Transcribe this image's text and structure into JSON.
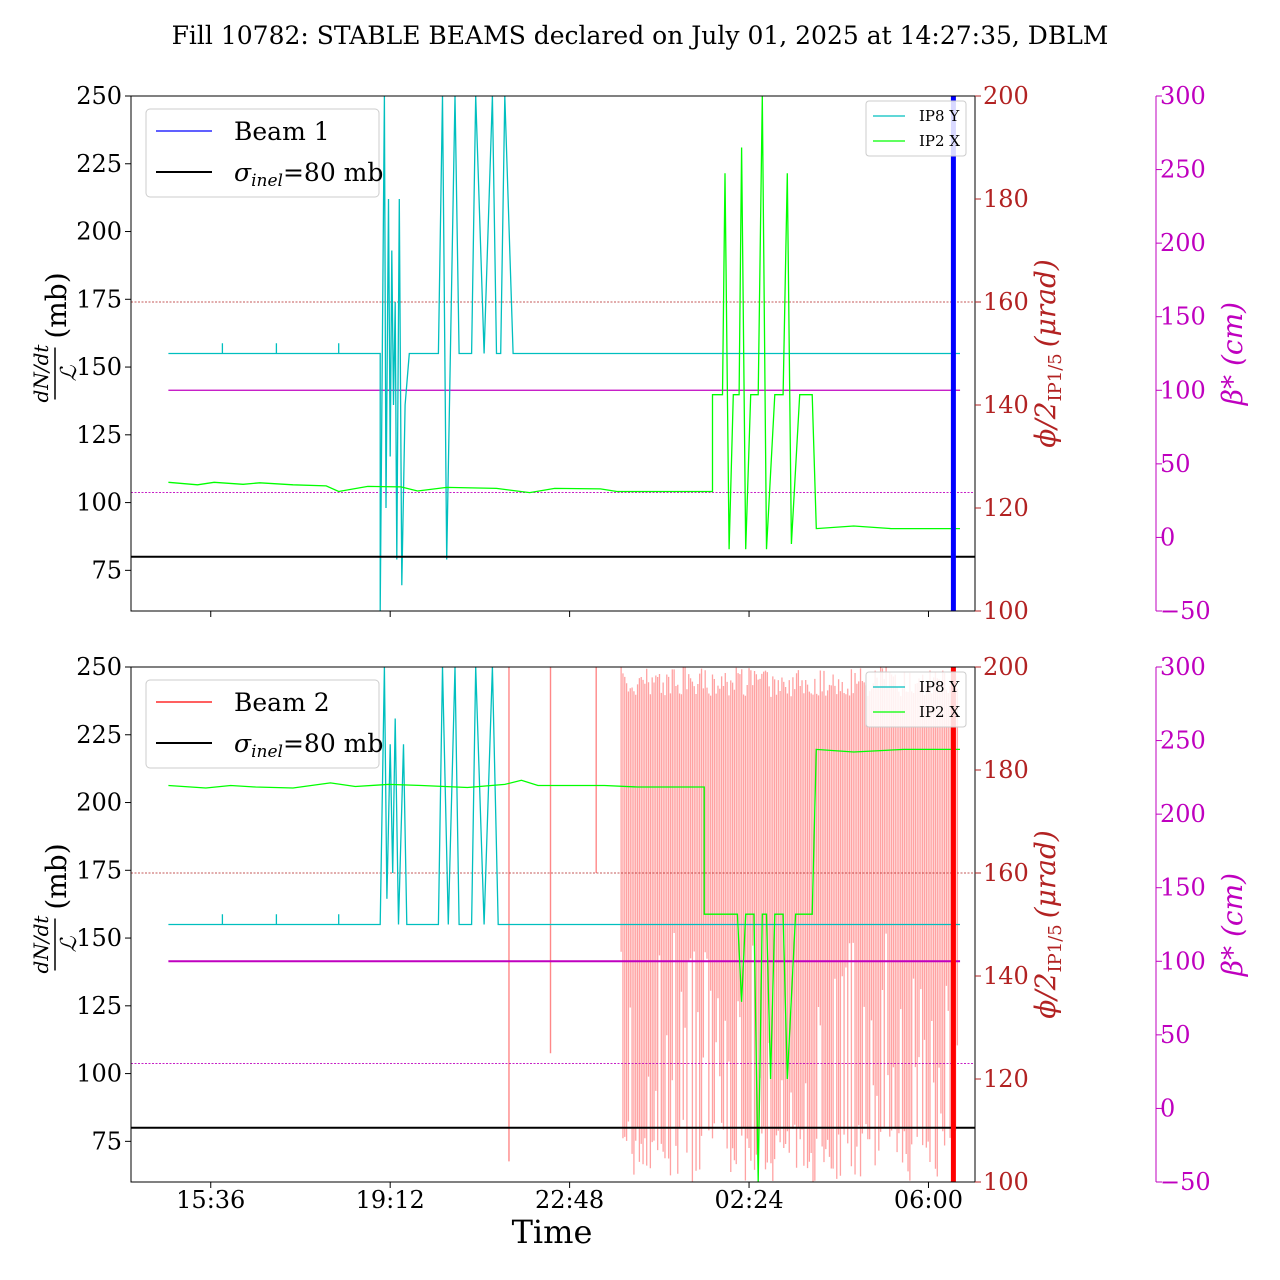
{
  "figure": {
    "title": "Fill 10782: STABLE BEAMS declared on July 01, 2025 at 14:27:35, DBLM",
    "xlabel": "Time",
    "x_tick_labels": [
      "15:36",
      "19:12",
      "22:48",
      "02:24",
      "06:00"
    ],
    "left_ylabel_num": "dN/dt",
    "left_ylabel_den": "ℒ",
    "left_ylabel_unit": "(mb)",
    "right_ylabel_1": "ϕ/2",
    "right_ylabel_1_sub": "IP1/5",
    "right_ylabel_1_unit": "(μrad)",
    "right_ylabel_2": "β* (cm)",
    "colors": {
      "beam1": "#0000ff",
      "beam2": "#ff0000",
      "ip8y": "#00bfbf",
      "ip2x": "#00ff00",
      "crossing_axis": "#b22222",
      "beta_axis": "#bf00bf",
      "sigma": "#000000"
    }
  },
  "chart_data": [
    {
      "type": "line",
      "panel": "top",
      "legend_left": [
        {
          "label": "Beam 1",
          "color": "#0000ff"
        },
        {
          "label_main": "σ",
          "label_sub": "inel",
          "label_rest": "=80 mb",
          "color": "#000000"
        }
      ],
      "legend_right": [
        "IP8 Y",
        "IP2 X"
      ],
      "left_axis": {
        "ticks": [
          75,
          100,
          125,
          150,
          175,
          200,
          225,
          250
        ],
        "ylim": [
          60,
          250
        ]
      },
      "right_axis_crossing": {
        "ticks": [
          100,
          120,
          140,
          160,
          180,
          200
        ],
        "ylim": [
          100,
          200
        ]
      },
      "right_axis_beta": {
        "ticks": [
          -50,
          0,
          50,
          100,
          150,
          200,
          250,
          300
        ],
        "ylim": [
          -50,
          300
        ]
      },
      "sigma_inel_mb": 80,
      "hlines_crossing": [
        160,
        123
      ],
      "beta_cm": 100,
      "beam_loss_time": "06:30",
      "series": [
        {
          "name": "IP8 Y",
          "points": [
            [
              "14:45",
              150
            ],
            [
              "15:50",
              150
            ],
            [
              "15:50",
              152
            ],
            [
              "15:50",
              150
            ],
            [
              "16:55",
              150
            ],
            [
              "16:55",
              152
            ],
            [
              "16:55",
              150
            ],
            [
              "18:10",
              150
            ],
            [
              "18:10",
              152
            ],
            [
              "18:10",
              150
            ],
            [
              "19:00",
              150
            ],
            [
              "19:00",
              100
            ],
            [
              "19:05",
              200
            ],
            [
              "19:07",
              120
            ],
            [
              "19:10",
              180
            ],
            [
              "19:12",
              130
            ],
            [
              "19:14",
              170
            ],
            [
              "19:16",
              140
            ],
            [
              "19:18",
              160
            ],
            [
              "19:20",
              110
            ],
            [
              "19:23",
              180
            ],
            [
              "19:26",
              105
            ],
            [
              "19:30",
              140
            ],
            [
              "19:35",
              150
            ],
            [
              "20:10",
              150
            ],
            [
              "20:15",
              200
            ],
            [
              "20:20",
              110
            ],
            [
              "20:30",
              200
            ],
            [
              "20:35",
              150
            ],
            [
              "20:50",
              150
            ],
            [
              "20:55",
              200
            ],
            [
              "21:05",
              150
            ],
            [
              "21:15",
              200
            ],
            [
              "21:20",
              150
            ],
            [
              "21:25",
              150
            ],
            [
              "21:30",
              200
            ],
            [
              "21:40",
              150
            ],
            [
              "06:38",
              150
            ]
          ]
        },
        {
          "name": "IP2 X",
          "points": [
            [
              "14:45",
              125
            ],
            [
              "15:20",
              124.5
            ],
            [
              "15:40",
              125
            ],
            [
              "16:15",
              124.6
            ],
            [
              "16:35",
              124.9
            ],
            [
              "17:15",
              124.5
            ],
            [
              "17:55",
              124.3
            ],
            [
              "18:10",
              123.2
            ],
            [
              "18:45",
              124.2
            ],
            [
              "19:25",
              124.1
            ],
            [
              "19:45",
              123.3
            ],
            [
              "20:20",
              124.0
            ],
            [
              "21:20",
              123.8
            ],
            [
              "22:00",
              123.0
            ],
            [
              "22:30",
              123.8
            ],
            [
              "23:25",
              123.7
            ],
            [
              "23:45",
              123.2
            ],
            [
              "01:30",
              123.2
            ],
            [
              "01:40",
              123.2
            ],
            [
              "01:40",
              142
            ],
            [
              "01:52",
              142
            ],
            [
              "01:55",
              185
            ],
            [
              "02:00",
              112
            ],
            [
              "02:05",
              142
            ],
            [
              "02:12",
              142
            ],
            [
              "02:15",
              190
            ],
            [
              "02:20",
              112
            ],
            [
              "02:26",
              142
            ],
            [
              "02:35",
              142
            ],
            [
              "02:40",
              200
            ],
            [
              "02:45",
              112
            ],
            [
              "02:55",
              142
            ],
            [
              "03:05",
              142
            ],
            [
              "03:10",
              185
            ],
            [
              "03:15",
              113
            ],
            [
              "03:25",
              142
            ],
            [
              "03:40",
              142
            ],
            [
              "03:45",
              116
            ],
            [
              "04:30",
              116.5
            ],
            [
              "05:15",
              116
            ],
            [
              "06:10",
              116
            ],
            [
              "06:38",
              116
            ]
          ]
        }
      ]
    },
    {
      "type": "line",
      "panel": "bottom",
      "legend_left": [
        {
          "label": "Beam 2",
          "color": "#ff0000"
        },
        {
          "label_main": "σ",
          "label_sub": "inel",
          "label_rest": "=80 mb",
          "color": "#000000"
        }
      ],
      "legend_right": [
        "IP8 Y",
        "IP2 X"
      ],
      "left_axis": {
        "ticks": [
          75,
          100,
          125,
          150,
          175,
          200,
          225,
          250
        ],
        "ylim": [
          60,
          250
        ]
      },
      "right_axis_crossing": {
        "ticks": [
          100,
          120,
          140,
          160,
          180,
          200
        ],
        "ylim": [
          100,
          200
        ]
      },
      "right_axis_beta": {
        "ticks": [
          -50,
          0,
          50,
          100,
          150,
          200,
          250,
          300
        ],
        "ylim": [
          -50,
          300
        ]
      },
      "sigma_inel_mb": 80,
      "hlines_crossing": [
        160,
        123
      ],
      "beta_cm": 100,
      "beam_loss_time": "06:30",
      "series": [
        {
          "name": "IP8 Y",
          "points": [
            [
              "14:45",
              150
            ],
            [
              "15:50",
              150
            ],
            [
              "15:50",
              152
            ],
            [
              "15:50",
              150
            ],
            [
              "16:55",
              150
            ],
            [
              "16:55",
              152
            ],
            [
              "16:55",
              150
            ],
            [
              "18:10",
              150
            ],
            [
              "18:10",
              152
            ],
            [
              "18:10",
              150
            ],
            [
              "19:00",
              150
            ],
            [
              "19:05",
              200
            ],
            [
              "19:08",
              155
            ],
            [
              "19:12",
              185
            ],
            [
              "19:15",
              160
            ],
            [
              "19:18",
              190
            ],
            [
              "19:22",
              150
            ],
            [
              "19:28",
              185
            ],
            [
              "19:32",
              150
            ],
            [
              "20:10",
              150
            ],
            [
              "20:15",
              200
            ],
            [
              "20:22",
              150
            ],
            [
              "20:30",
              200
            ],
            [
              "20:35",
              150
            ],
            [
              "20:50",
              150
            ],
            [
              "20:55",
              200
            ],
            [
              "21:05",
              150
            ],
            [
              "21:15",
              200
            ],
            [
              "21:22",
              150
            ],
            [
              "06:38",
              150
            ]
          ]
        },
        {
          "name": "IP2 X",
          "points": [
            [
              "14:45",
              177
            ],
            [
              "15:30",
              176.5
            ],
            [
              "16:00",
              177
            ],
            [
              "16:30",
              176.7
            ],
            [
              "17:15",
              176.5
            ],
            [
              "18:00",
              177.5
            ],
            [
              "18:30",
              176.8
            ],
            [
              "19:10",
              177.2
            ],
            [
              "19:50",
              177.0
            ],
            [
              "20:45",
              176.6
            ],
            [
              "21:30",
              177.2
            ],
            [
              "21:50",
              178.0
            ],
            [
              "22:10",
              177.0
            ],
            [
              "23:30",
              177.0
            ],
            [
              "00:10",
              176.7
            ],
            [
              "01:30",
              176.7
            ],
            [
              "01:30",
              152
            ],
            [
              "02:10",
              152
            ],
            [
              "02:15",
              135
            ],
            [
              "02:20",
              152
            ],
            [
              "02:30",
              152
            ],
            [
              "02:35",
              100
            ],
            [
              "02:40",
              152
            ],
            [
              "02:45",
              152
            ],
            [
              "02:50",
              120
            ],
            [
              "02:55",
              152
            ],
            [
              "03:05",
              152
            ],
            [
              "03:10",
              120
            ],
            [
              "03:20",
              152
            ],
            [
              "03:40",
              152
            ],
            [
              "03:45",
              184
            ],
            [
              "04:30",
              183.5
            ],
            [
              "05:30",
              184
            ],
            [
              "06:38",
              184
            ]
          ]
        }
      ]
    }
  ]
}
